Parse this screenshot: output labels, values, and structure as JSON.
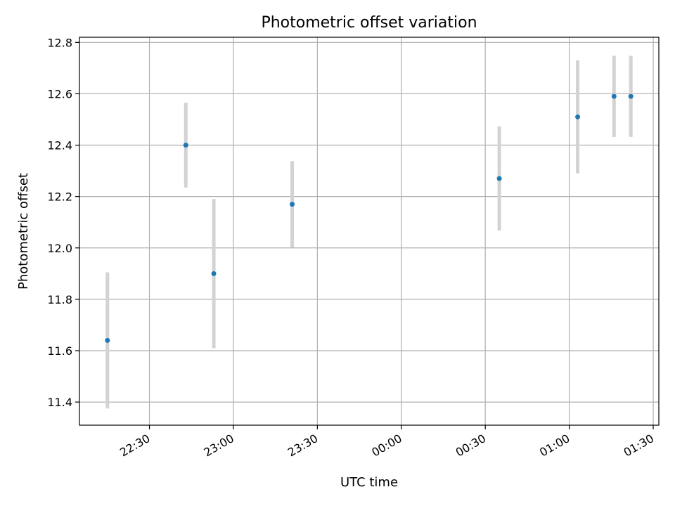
{
  "chart_data": {
    "type": "scatter",
    "title": "Photometric offset variation",
    "xlabel": "UTC time",
    "ylabel": "Photometric offset",
    "x_axis_type": "time",
    "xlim": [
      "22:05",
      "01:32"
    ],
    "ylim": [
      11.31,
      12.82
    ],
    "x_ticks": [
      "22:30",
      "23:00",
      "23:30",
      "00:00",
      "00:30",
      "01:00",
      "01:30"
    ],
    "y_ticks": [
      "11.4",
      "11.6",
      "11.8",
      "12.0",
      "12.2",
      "12.4",
      "12.6",
      "12.8"
    ],
    "grid": true,
    "legend": "none",
    "point_color": "#1f77b4",
    "errorbar_color": "#d3d3d3",
    "points": [
      {
        "time": "22:15",
        "y": 11.64,
        "err": 0.265
      },
      {
        "time": "22:43",
        "y": 12.4,
        "err": 0.165
      },
      {
        "time": "22:53",
        "y": 11.9,
        "err": 0.29
      },
      {
        "time": "23:21",
        "y": 12.17,
        "err": 0.168
      },
      {
        "time": "00:35",
        "y": 12.27,
        "err": 0.203
      },
      {
        "time": "01:03",
        "y": 12.51,
        "err": 0.22
      },
      {
        "time": "01:16",
        "y": 12.59,
        "err": 0.158
      },
      {
        "time": "01:22",
        "y": 12.59,
        "err": 0.158
      }
    ]
  }
}
